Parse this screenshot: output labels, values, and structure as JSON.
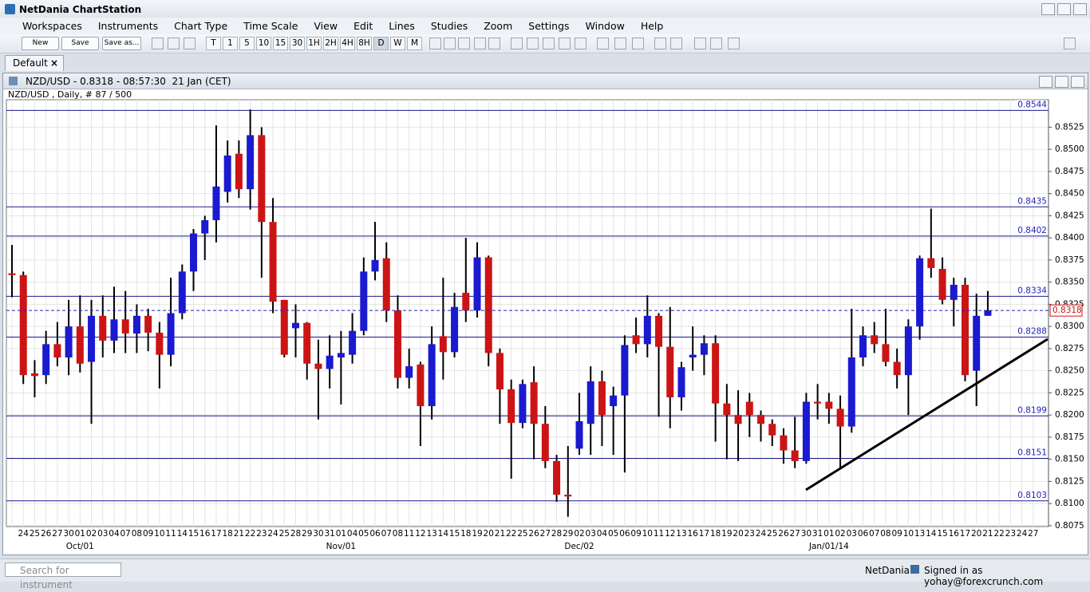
{
  "app": {
    "title": "NetDania ChartStation",
    "menu": [
      "Workspaces",
      "Instruments",
      "Chart Type",
      "Time Scale",
      "View",
      "Edit",
      "Lines",
      "Studies",
      "Zoom",
      "Settings",
      "Window",
      "Help"
    ],
    "buttons": [
      "New",
      "Save",
      "Save as..."
    ],
    "timeframes": [
      "T",
      "1",
      "5",
      "10",
      "15",
      "30",
      "1H",
      "2H",
      "4H",
      "8H",
      "D",
      "W",
      "M"
    ],
    "tab": "Default",
    "window_title": "NZD/USD - 0.8318 - 08:57:30  21 Jan (CET)",
    "search_placeholder": "Search for instrument",
    "status_brand": "NetDania",
    "status_user": "Signed in as yohay@forexcrunch.com"
  },
  "chart_data": {
    "type": "candlestick",
    "title": "NZD/USD , Daily, # 87 / 500",
    "categories": [
      null,
      "24",
      "25",
      "26",
      "27",
      "30",
      "01",
      "02",
      "03",
      "04",
      "07",
      "08",
      "09",
      "10",
      "11",
      "14",
      "15",
      "16",
      "17",
      "18",
      "21",
      "22",
      "23",
      "24",
      "25",
      "28",
      "29",
      "30",
      "31",
      "01",
      "04",
      "05",
      "06",
      "07",
      "08",
      "11",
      "12",
      "13",
      "14",
      "15",
      "18",
      "19",
      "20",
      "21",
      "22",
      "25",
      "26",
      "27",
      "28",
      "29",
      "02",
      "03",
      "04",
      "05",
      "06",
      "09",
      "10",
      "11",
      "12",
      "13",
      "16",
      "17",
      "18",
      "19",
      "20",
      "23",
      "24",
      "25",
      "26",
      "27",
      "30",
      "31",
      "01",
      "02",
      "03",
      "06",
      "07",
      "08",
      "09",
      "10",
      "13",
      "14",
      "15",
      "16",
      "17",
      "20",
      "21",
      "22",
      "23",
      "24",
      "27"
    ],
    "month_labels": [
      null,
      null,
      null,
      null,
      null,
      null,
      "Oct/01",
      null,
      null,
      null,
      null,
      null,
      null,
      null,
      null,
      null,
      null,
      null,
      null,
      null,
      null,
      null,
      null,
      null,
      null,
      null,
      null,
      null,
      null,
      "Nov/01",
      null,
      null,
      null,
      null,
      null,
      null,
      null,
      null,
      null,
      null,
      null,
      null,
      null,
      null,
      null,
      null,
      null,
      null,
      null,
      null,
      "Dec/02",
      null,
      null,
      null,
      null,
      null,
      null,
      null,
      null,
      null,
      null,
      null,
      null,
      null,
      null,
      null,
      null,
      null,
      null,
      null,
      null,
      null,
      "Jan/01/14",
      null,
      null,
      null,
      null,
      null,
      null,
      null,
      null,
      null,
      null,
      null,
      null,
      null,
      null,
      null,
      null,
      null,
      null
    ],
    "open": [
      0.836,
      0.8358,
      0.8247,
      0.8245,
      0.828,
      0.8265,
      0.83,
      0.826,
      0.8312,
      0.8284,
      0.8308,
      0.8292,
      0.8312,
      0.8293,
      0.8268,
      0.8315,
      0.8362,
      0.8405,
      0.842,
      0.8452,
      0.8495,
      0.8455,
      0.8516,
      0.8418,
      0.833,
      0.8298,
      0.8304,
      0.8258,
      0.8252,
      0.8265,
      0.8268,
      0.8295,
      0.8362,
      0.8377,
      0.8318,
      0.8242,
      0.8257,
      0.821,
      0.8289,
      0.8271,
      0.8338,
      0.8318,
      0.8378,
      0.827,
      0.8229,
      0.8191,
      0.8237,
      0.819,
      0.8148,
      0.811,
      0.8162,
      0.819,
      0.8238,
      0.821,
      0.8222,
      0.829,
      0.828,
      0.8312,
      0.8277,
      0.822,
      0.8265,
      0.8268,
      0.8281,
      0.8213,
      0.82,
      0.8215,
      0.82,
      0.819,
      0.8177,
      0.816,
      0.8148,
      0.8215,
      0.8215,
      0.8207,
      0.8187,
      0.8265,
      0.829,
      0.828,
      0.826,
      0.8245,
      0.83,
      0.8377,
      0.8365,
      0.833,
      0.8347,
      0.825,
      0.8312,
      null,
      null,
      null,
      null
    ],
    "high": [
      0.8392,
      0.8362,
      0.8262,
      0.8295,
      0.8305,
      0.833,
      0.8335,
      0.833,
      0.8335,
      0.8345,
      0.834,
      0.8325,
      0.832,
      0.8305,
      0.8355,
      0.837,
      0.841,
      0.8425,
      0.8527,
      0.851,
      0.851,
      0.8545,
      0.8525,
      0.8445,
      0.833,
      0.8325,
      0.8305,
      0.8285,
      0.829,
      0.8295,
      0.8315,
      0.8378,
      0.8418,
      0.8395,
      0.8335,
      0.8275,
      0.826,
      0.83,
      0.8355,
      0.8338,
      0.84,
      0.8395,
      0.838,
      0.8275,
      0.824,
      0.824,
      0.8255,
      0.821,
      0.8155,
      0.8165,
      0.8225,
      0.8255,
      0.825,
      0.8232,
      0.829,
      0.831,
      0.8335,
      0.8315,
      0.8322,
      0.826,
      0.83,
      0.829,
      0.829,
      0.8235,
      0.8228,
      0.8225,
      0.8205,
      0.8195,
      0.8185,
      0.8198,
      0.8225,
      0.8235,
      0.8225,
      0.8222,
      0.832,
      0.83,
      0.8305,
      0.832,
      0.8275,
      0.8308,
      0.838,
      0.8433,
      0.8378,
      0.8355,
      0.8355,
      0.8337,
      0.834,
      null,
      null,
      null,
      null
    ],
    "low": [
      0.8333,
      0.8235,
      0.822,
      0.8235,
      0.8255,
      0.8245,
      0.8248,
      0.819,
      0.8265,
      0.827,
      0.827,
      0.827,
      0.8272,
      0.823,
      0.8255,
      0.8308,
      0.834,
      0.8375,
      0.8395,
      0.844,
      0.8445,
      0.8432,
      0.8355,
      0.8315,
      0.8265,
      0.8265,
      0.824,
      0.8195,
      0.823,
      0.8212,
      0.8258,
      0.829,
      0.8352,
      0.8305,
      0.823,
      0.823,
      0.8165,
      0.8195,
      0.824,
      0.8265,
      0.8305,
      0.831,
      0.8255,
      0.819,
      0.8128,
      0.8185,
      0.815,
      0.814,
      0.8102,
      0.8085,
      0.8155,
      0.8155,
      0.8165,
      0.8155,
      0.8135,
      0.827,
      0.8265,
      0.8198,
      0.8185,
      0.8205,
      0.825,
      0.8245,
      0.817,
      0.815,
      0.8148,
      0.8175,
      0.817,
      0.8165,
      0.8145,
      0.814,
      0.8145,
      0.8195,
      0.819,
      0.814,
      0.818,
      0.8255,
      0.827,
      0.8255,
      0.823,
      0.82,
      0.8285,
      0.8355,
      0.8325,
      0.83,
      0.8238,
      0.821,
      0.8312,
      null,
      null,
      null,
      null
    ],
    "close": [
      0.8358,
      0.8245,
      0.8244,
      0.828,
      0.8265,
      0.83,
      0.8258,
      0.8312,
      0.8284,
      0.8308,
      0.8292,
      0.8312,
      0.8293,
      0.8268,
      0.8315,
      0.8362,
      0.8405,
      0.842,
      0.8458,
      0.8493,
      0.8455,
      0.8516,
      0.8418,
      0.8328,
      0.8268,
      0.8304,
      0.8258,
      0.8252,
      0.8267,
      0.827,
      0.8295,
      0.8362,
      0.8375,
      0.8318,
      0.8242,
      0.8255,
      0.821,
      0.828,
      0.8271,
      0.8322,
      0.8318,
      0.8378,
      0.827,
      0.8229,
      0.8191,
      0.8235,
      0.819,
      0.8148,
      0.811,
      0.8108,
      0.8193,
      0.8238,
      0.82,
      0.8222,
      0.8279,
      0.828,
      0.8312,
      0.8277,
      0.822,
      0.8254,
      0.8268,
      0.8281,
      0.8213,
      0.82,
      0.819,
      0.82,
      0.819,
      0.8177,
      0.816,
      0.8148,
      0.8215,
      0.8213,
      0.8207,
      0.8187,
      0.8265,
      0.829,
      0.828,
      0.826,
      0.8245,
      0.83,
      0.8377,
      0.8366,
      0.833,
      0.8347,
      0.8245,
      0.8312,
      0.8318,
      null,
      null,
      null,
      null
    ],
    "up_color": "#1a1ad0",
    "down_color": "#cc1414",
    "ylim": [
      0.8074,
      0.8556
    ],
    "yticks": [
      0.8075,
      {
        "value": 0.81,
        "label": "0.8100"
      },
      0.8125,
      {
        "value": 0.815,
        "label": "0.8150"
      },
      0.8175,
      {
        "value": 0.82,
        "label": "0.8200"
      },
      0.8225,
      {
        "value": 0.825,
        "label": "0.8250"
      },
      0.8275,
      {
        "value": 0.83,
        "label": "0.8300"
      },
      0.8325,
      {
        "value": 0.835,
        "label": "0.8350"
      },
      0.8375,
      {
        "value": 0.84,
        "label": "0.8400"
      },
      0.8425,
      {
        "value": 0.845,
        "label": "0.8450"
      },
      0.8475,
      {
        "value": 0.85,
        "label": "0.8500"
      },
      0.8525
    ],
    "levels": [
      0.8544,
      0.8435,
      0.8402,
      0.8334,
      0.8288,
      0.8199,
      0.8151,
      0.8103
    ],
    "level_color": "#1a1a8c",
    "last": 0.8318,
    "grid": true
  }
}
